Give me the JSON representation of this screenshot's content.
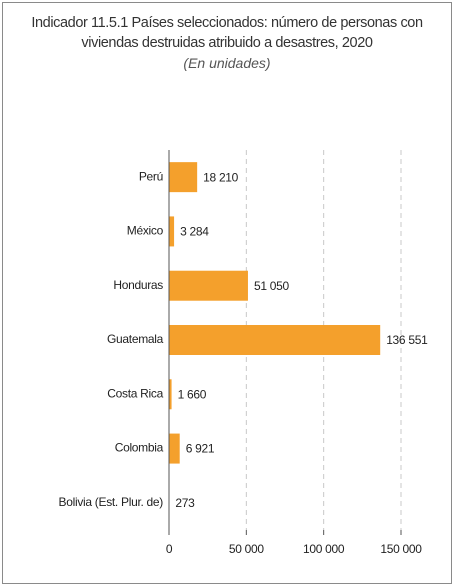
{
  "chart_data": {
    "type": "bar",
    "orientation": "horizontal",
    "title": "Indicador 11.5.1 Países seleccionados: número de personas con viviendas destruidas atribuido a desastres, 2020",
    "subtitle": "(En unidades)",
    "categories": [
      "Perú",
      "México",
      "Honduras",
      "Guatemala",
      "Costa Rica",
      "Colombia",
      "Bolivia (Est. Plur. de)"
    ],
    "values": [
      18210,
      3284,
      51050,
      136551,
      1660,
      6921,
      273
    ],
    "value_labels": [
      "18 210",
      "3 284",
      "51 050",
      "136 551",
      "1 660",
      "6 921",
      "273"
    ],
    "color": "#f4a02c",
    "xlim": [
      0,
      150000
    ],
    "xticks": [
      0,
      {
        "value": 50000,
        "label": "50 000"
      },
      {
        "value": 100000,
        "label": "100 000"
      },
      {
        "value": 150000,
        "label": "150 000"
      }
    ],
    "grid": true
  }
}
